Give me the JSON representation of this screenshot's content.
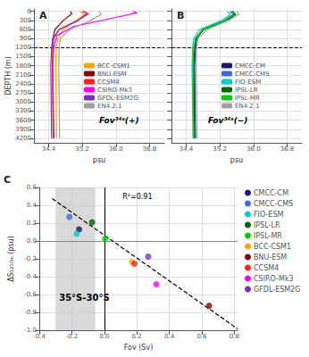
{
  "chart_data": [
    {
      "type": "line",
      "title": "A",
      "xlabel": "psu",
      "ylabel": "DEPTH (m)",
      "xlim": [
        34.05,
        37.15
      ],
      "ylim": [
        4350,
        -80
      ],
      "xticks": [
        34.4,
        35.2,
        {
          "value": 36.0,
          "label": "36.0"
        },
        36.8
      ],
      "yticks": [
        0,
        300,
        600,
        900,
        1200,
        1500,
        1800,
        2100,
        2400,
        2700,
        3000,
        3300,
        3600,
        3900,
        4200
      ],
      "grid": true,
      "legend": "right",
      "hlines": [
        {
          "value": 1200,
          "line_style": "dashed",
          "color": "#000000"
        }
      ],
      "annotations": [
        {
          "text": "Fov³⁴ˢ(+)"
        }
      ],
      "series": [
        {
          "name": "BCC-CSM1",
          "color": "#FFA500",
          "x": [
            35.15,
            35.25,
            35.05,
            34.75,
            34.62,
            34.58,
            34.57,
            34.58,
            34.59
          ],
          "values": [
            0,
            100,
            300,
            600,
            900,
            1200,
            1800,
            3000,
            4200
          ]
        },
        {
          "name": "BNU-ESM",
          "color": "#8B0000",
          "x": [
            34.92,
            34.95,
            34.75,
            34.55,
            34.5,
            34.5,
            34.5,
            34.51,
            34.52
          ],
          "values": [
            0,
            80,
            300,
            600,
            900,
            1200,
            1800,
            3000,
            4200
          ]
        },
        {
          "name": "CCSM4",
          "color": "#FF2020",
          "x": [
            35.2,
            35.35,
            35.1,
            34.65,
            34.52,
            34.5,
            34.49,
            34.5,
            34.51
          ],
          "values": [
            0,
            80,
            300,
            600,
            900,
            1200,
            1800,
            3000,
            4200
          ]
        },
        {
          "name": "CSIRO-Mk3",
          "color": "#FF00FF",
          "x": [
            36.4,
            36.5,
            36.0,
            35.0,
            34.6,
            34.52,
            34.5,
            34.5,
            34.51
          ],
          "values": [
            0,
            50,
            200,
            500,
            800,
            1200,
            1800,
            3000,
            4200
          ]
        },
        {
          "name": "GFDL-ESM2G",
          "color": "#7B2FBE",
          "x": [
            35.25,
            35.3,
            35.1,
            34.65,
            34.5,
            34.47,
            34.45,
            34.46,
            34.47
          ],
          "values": [
            0,
            80,
            300,
            600,
            900,
            1200,
            1800,
            3000,
            4200
          ]
        },
        {
          "name": "EN4.2.1",
          "color": "#A0A0A0",
          "x": [
            35.6,
            35.65,
            35.4,
            34.9,
            34.68,
            34.65,
            34.64,
            34.65,
            34.66
          ],
          "values": [
            0,
            100,
            300,
            600,
            900,
            1200,
            1800,
            3000,
            4200
          ]
        }
      ]
    },
    {
      "type": "line",
      "title": "B",
      "xlabel": "psu",
      "xlim": [
        34.05,
        37.15
      ],
      "ylim": [
        4350,
        -80
      ],
      "xticks": [
        34.4,
        35.2,
        {
          "value": 36.0,
          "label": "36.0"
        },
        36.8
      ],
      "yticks": [
        0,
        300,
        600,
        900,
        1200,
        1500,
        1800,
        2100,
        2400,
        2700,
        3000,
        3300,
        3600,
        3900,
        4200
      ],
      "tick_labels": "x",
      "grid": true,
      "legend": "right",
      "hlines": [
        {
          "value": 1200,
          "line_style": "dashed",
          "color": "#000000"
        }
      ],
      "annotations": [
        {
          "text": "Fov³⁴ˢ(−)"
        }
      ],
      "series": [
        {
          "name": "CMCC-CM",
          "color": "#191970",
          "x": [
            35.5,
            35.55,
            35.35,
            34.8,
            34.65,
            34.62,
            34.6,
            34.61,
            34.62
          ],
          "values": [
            0,
            100,
            300,
            600,
            900,
            1200,
            1800,
            3000,
            4200
          ]
        },
        {
          "name": "CMCC-CMS",
          "color": "#4169E1",
          "x": [
            35.45,
            35.52,
            35.3,
            34.78,
            34.63,
            34.6,
            34.58,
            34.59,
            34.6
          ],
          "values": [
            0,
            100,
            300,
            600,
            900,
            1200,
            1800,
            3000,
            4200
          ]
        },
        {
          "name": "FIO-ESM",
          "color": "#00CCCC",
          "x": [
            35.38,
            35.45,
            35.25,
            34.72,
            34.58,
            34.55,
            34.54,
            34.55,
            34.56
          ],
          "values": [
            0,
            100,
            300,
            600,
            900,
            1200,
            1800,
            3000,
            4200
          ]
        },
        {
          "name": "IPSL-LR",
          "color": "#006400",
          "x": [
            35.5,
            35.58,
            35.38,
            34.82,
            34.63,
            34.6,
            34.58,
            34.59,
            34.6
          ],
          "values": [
            0,
            100,
            300,
            600,
            900,
            1200,
            1800,
            3000,
            4200
          ]
        },
        {
          "name": "IPSL-MR",
          "color": "#00CC00",
          "x": [
            35.48,
            35.55,
            35.33,
            34.8,
            34.62,
            34.58,
            34.56,
            34.57,
            34.58
          ],
          "values": [
            0,
            100,
            300,
            600,
            900,
            1200,
            1800,
            3000,
            4200
          ]
        },
        {
          "name": "EN4.2.1",
          "color": "#A0A0A0",
          "x": [
            35.6,
            35.65,
            35.4,
            34.9,
            34.68,
            34.65,
            34.64,
            34.65,
            34.66
          ],
          "values": [
            0,
            100,
            300,
            600,
            900,
            1200,
            1800,
            3000,
            4200
          ]
        }
      ]
    },
    {
      "type": "scatter",
      "title": "C",
      "xlabel": "Fov (Sv)",
      "ylabel": "ΔS₁₂₀₀ₘ (psu)",
      "xlim": [
        -0.4,
        0.82
      ],
      "ylim": [
        -1.0,
        0.6
      ],
      "xticks": [
        -0.4,
        -0.2,
        {
          "value": 0.0,
          "label": "0.0"
        },
        0.2,
        0.4,
        0.6,
        0.8
      ],
      "yticks": [
        {
          "value": -1.0,
          "label": "-1.0"
        },
        -0.8,
        -0.6,
        -0.4,
        -0.2,
        {
          "value": 0.0,
          "label": "0.0"
        },
        0.2,
        0.4,
        0.6
      ],
      "grid": true,
      "legend": "right",
      "shade": {
        "xlim": [
          -0.3,
          -0.055
        ],
        "color": "#cccccc"
      },
      "hlines": [
        {
          "value": 0,
          "color": "#888888"
        }
      ],
      "vlines": [
        {
          "value": 0,
          "color": "#000000"
        }
      ],
      "regression_line": {
        "x": [
          -0.32,
          0.82
        ],
        "values": [
          0.4746,
          -0.9846
        ],
        "line_style": "dashed",
        "color": "#000000"
      },
      "annotations": [
        {
          "text": "R²=0.91"
        },
        {
          "text": "35°S-30°S"
        }
      ],
      "series": [
        {
          "name": "CMCC-CM",
          "color": "#191970",
          "x": [
            -0.155
          ],
          "values": [
            0.13
          ]
        },
        {
          "name": "CMCC-CMS",
          "color": "#4169E1",
          "x": [
            -0.215
          ],
          "values": [
            0.27
          ]
        },
        {
          "name": "FIO-ESM",
          "color": "#00CCCC",
          "x": [
            -0.17
          ],
          "values": [
            0.08
          ]
        },
        {
          "name": "IPSL-LR",
          "color": "#006400",
          "x": [
            -0.075
          ],
          "values": [
            0.21
          ]
        },
        {
          "name": "IPSL-MR",
          "color": "#00CC00",
          "x": [
            0.005
          ],
          "values": [
            0.025
          ]
        },
        {
          "name": "BCC-CSM1",
          "color": "#FFA500",
          "x": [
            0.17
          ],
          "values": [
            -0.235
          ]
        },
        {
          "name": "BNU-ESM",
          "color": "#8B0000",
          "x": [
            0.645
          ],
          "values": [
            -0.725
          ]
        },
        {
          "name": "CCSM4",
          "color": "#FF2020",
          "x": [
            0.185
          ],
          "values": [
            -0.255
          ]
        },
        {
          "name": "CSIRO-Mk3",
          "color": "#FF00FF",
          "x": [
            0.32
          ],
          "values": [
            -0.485
          ]
        },
        {
          "name": "GFDL-ESM2G",
          "color": "#7B2FBE",
          "x": [
            0.27
          ],
          "values": [
            -0.175
          ]
        }
      ]
    }
  ]
}
